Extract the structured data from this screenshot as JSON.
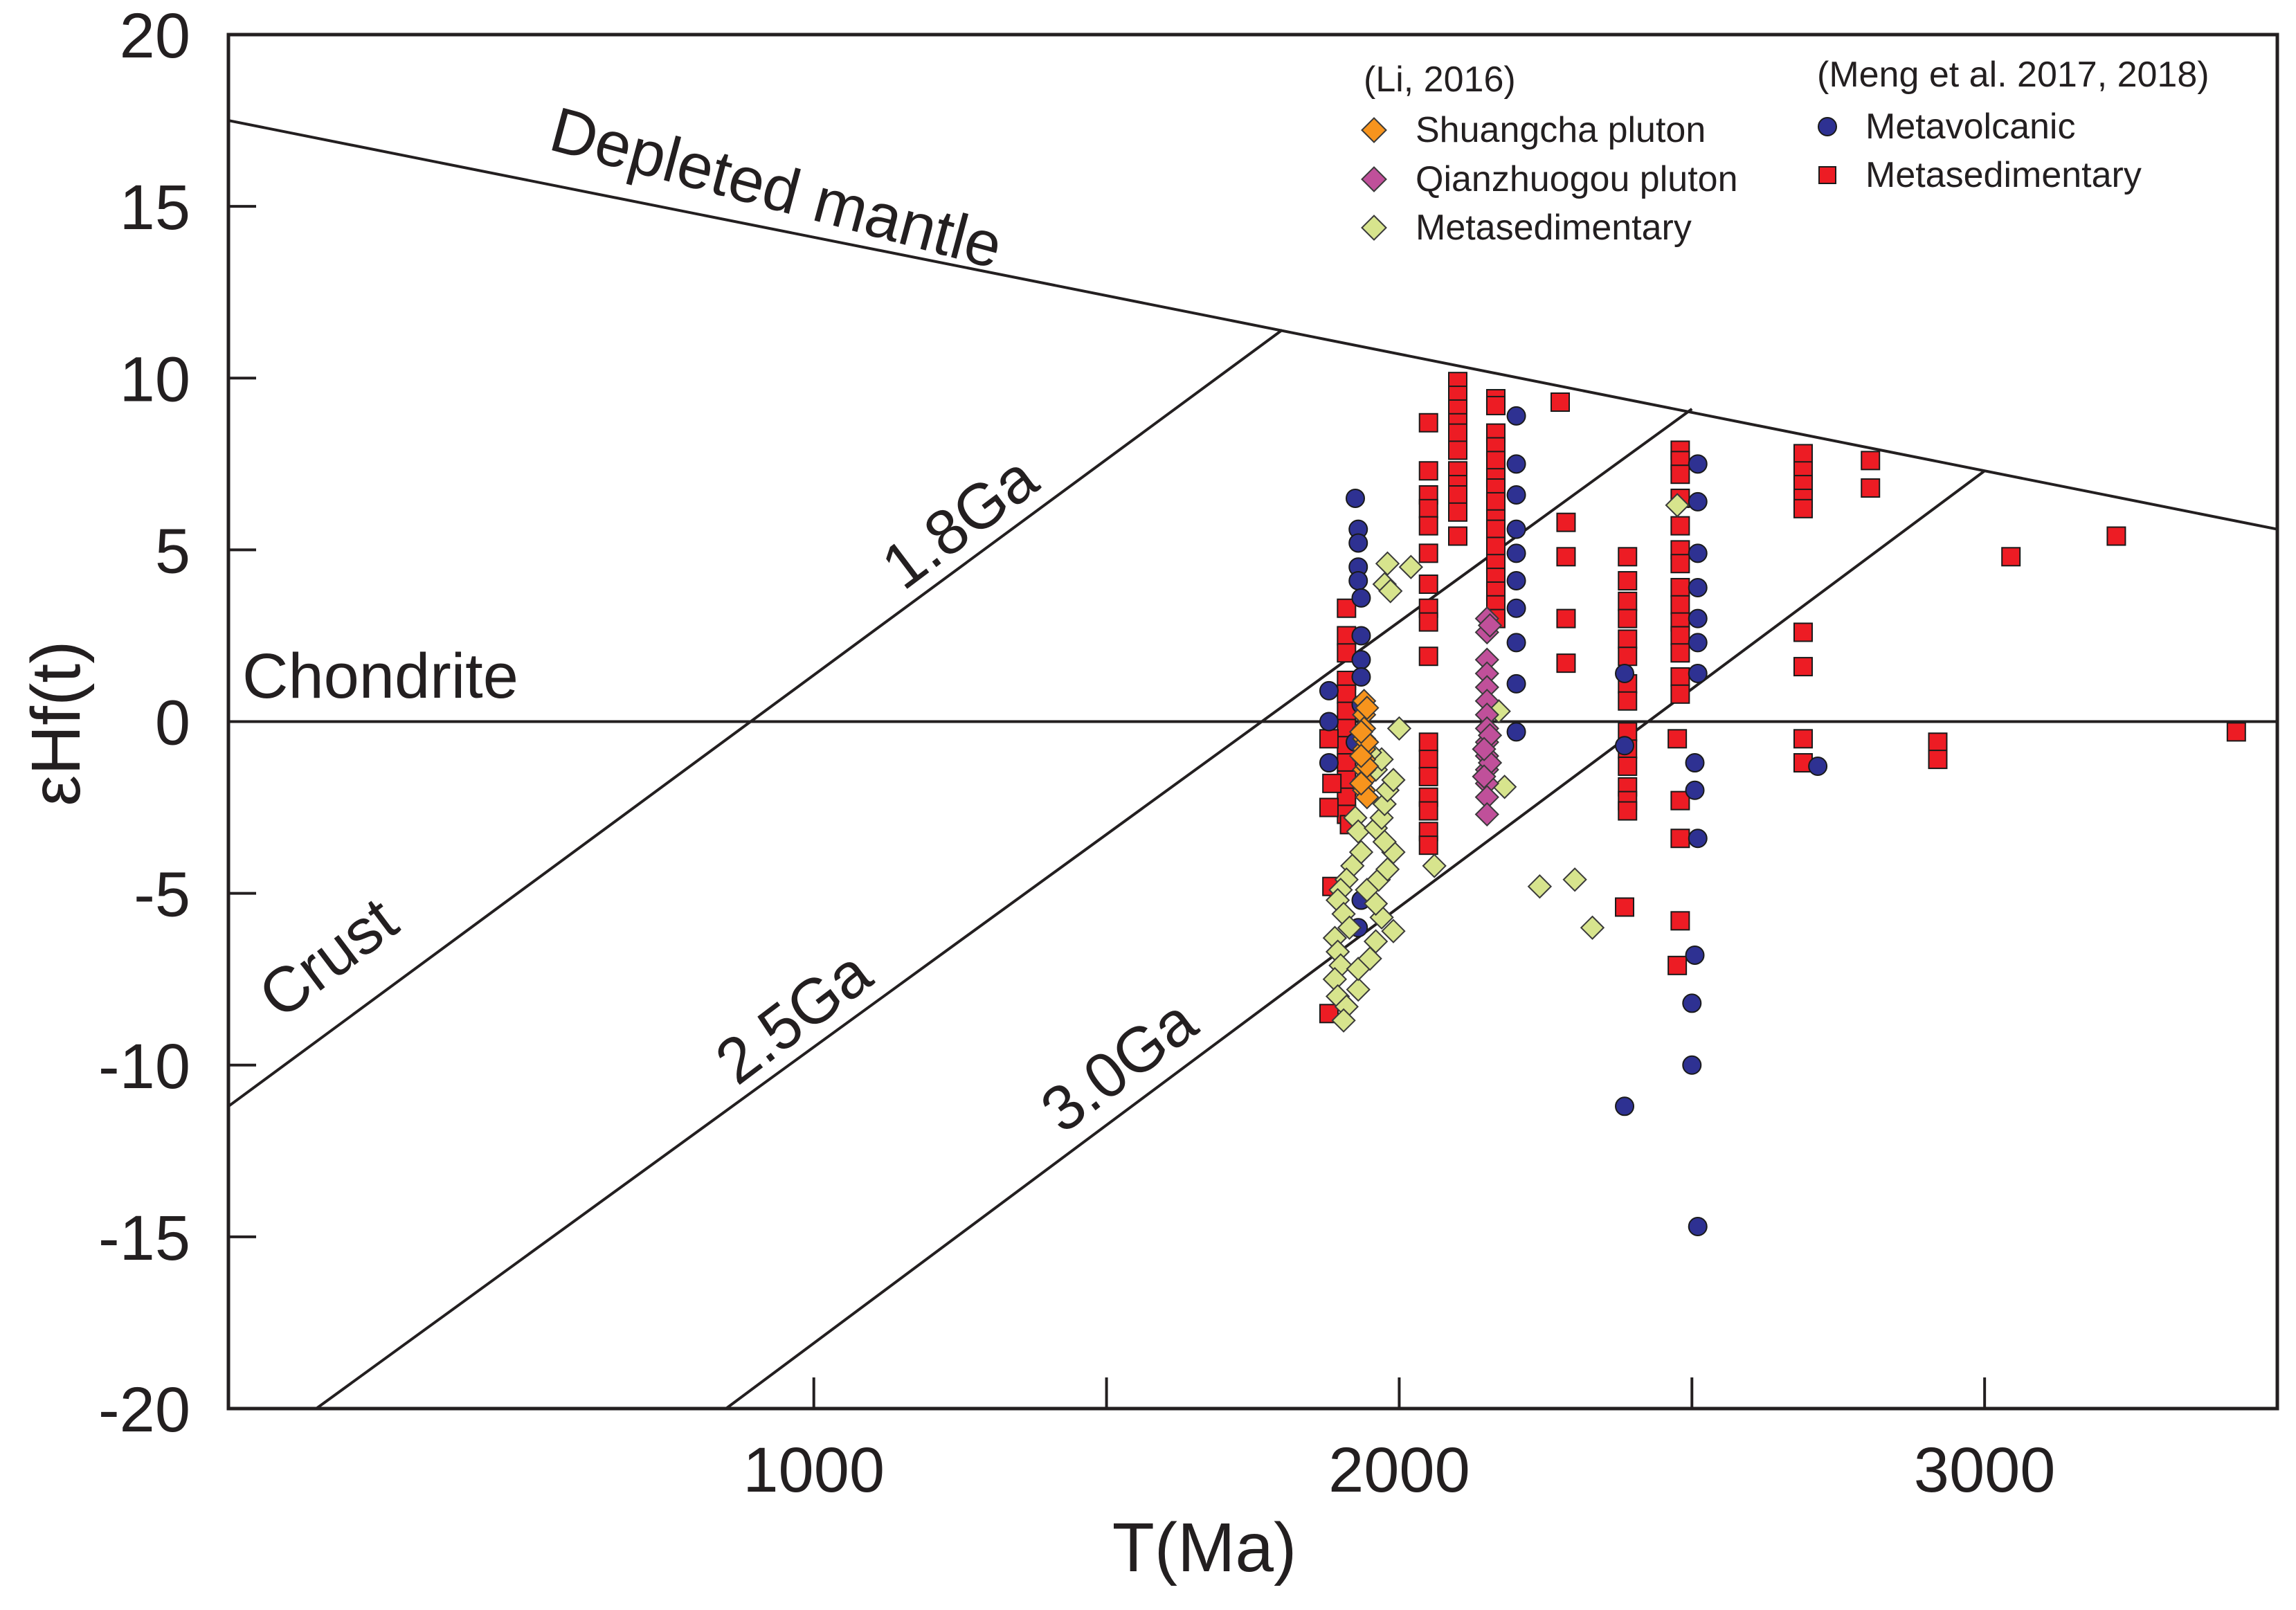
{
  "chart_data": {
    "type": "scatter",
    "title": "",
    "xlabel": "T(Ma)",
    "ylabel": "εHf(t)",
    "xlim": [
      0,
      3500
    ],
    "ylim": [
      -20,
      20
    ],
    "x_ticks": [
      1000,
      2000,
      3000
    ],
    "x_minor_ticks": [
      1500,
      2500
    ],
    "y_ticks": [
      20,
      15,
      10,
      5,
      0,
      -5,
      -10,
      -15,
      -20
    ],
    "x_tick_labels": [
      "1000",
      "2000",
      "3000"
    ],
    "y_tick_labels": [
      "20",
      "15",
      "10",
      "5",
      "0",
      "-5",
      "-10",
      "-15",
      "-20"
    ],
    "grid": false,
    "legend_position": "top-right",
    "reference_lines": [
      {
        "name": "Depleted mantle",
        "label": "Depleted mantle",
        "points": [
          [
            0,
            17.5
          ],
          [
            3500,
            5.6
          ]
        ]
      },
      {
        "name": "Chondrite",
        "label": "Chondrite",
        "points": [
          [
            0,
            0
          ],
          [
            3500,
            0
          ]
        ]
      },
      {
        "name": "Crust 1.8Ga",
        "label": "1.8Ga",
        "points": [
          [
            0,
            -11.2
          ],
          [
            1800,
            11.4
          ]
        ]
      },
      {
        "name": "Crust 2.5Ga",
        "label": "2.5Ga",
        "points": [
          [
            150,
            -20
          ],
          [
            2500,
            9.1
          ]
        ]
      },
      {
        "name": "Crust 3.0Ga",
        "label": "3.0Ga",
        "points": [
          [
            850,
            -20
          ],
          [
            3000,
            7.3
          ]
        ]
      }
    ],
    "crust_label": "Crust",
    "legend_groups": [
      {
        "heading": "(Li, 2016)",
        "entries": [
          "Shuangcha pluton",
          "Qianzhuogou pluton",
          "Metasedimentary"
        ]
      },
      {
        "heading": "(Meng et al. 2017, 2018)",
        "entries": [
          "Metavolcanic",
          "Metasedimentary"
        ]
      }
    ],
    "series": [
      {
        "name": "Shuangcha pluton",
        "marker": "diamond",
        "color": "#f7941d",
        "points": [
          [
            1940,
            0.6
          ],
          [
            1940,
            0.2
          ],
          [
            1940,
            -0.2
          ],
          [
            1940,
            -0.5
          ],
          [
            1940,
            -0.8
          ],
          [
            1940,
            -1.1
          ],
          [
            1940,
            -1.4
          ],
          [
            1940,
            -1.7
          ],
          [
            1940,
            -2.0
          ],
          [
            1945,
            0.4
          ],
          [
            1945,
            -0.6
          ],
          [
            1945,
            -1.3
          ],
          [
            1945,
            -2.2
          ],
          [
            1935,
            -0.3
          ],
          [
            1935,
            -1.0
          ],
          [
            1935,
            -1.8
          ]
        ]
      },
      {
        "name": "Qianzhuogou pluton",
        "marker": "diamond",
        "color": "#c0509a",
        "points": [
          [
            2150,
            3.0
          ],
          [
            2150,
            2.6
          ],
          [
            2150,
            1.8
          ],
          [
            2150,
            1.4
          ],
          [
            2150,
            1.0
          ],
          [
            2150,
            0.6
          ],
          [
            2150,
            0.2
          ],
          [
            2150,
            -0.2
          ],
          [
            2150,
            -0.6
          ],
          [
            2150,
            -1.0
          ],
          [
            2150,
            -1.4
          ],
          [
            2150,
            -1.8
          ],
          [
            2150,
            -2.2
          ],
          [
            2150,
            -2.7
          ],
          [
            2155,
            2.8
          ],
          [
            2155,
            -0.4
          ],
          [
            2155,
            -1.2
          ],
          [
            2145,
            -0.8
          ],
          [
            2145,
            -1.6
          ]
        ]
      },
      {
        "name": "Metasedimentary (Li, 2016)",
        "marker": "diamond",
        "color": "#d7e48d",
        "points": [
          [
            1980,
            4.6
          ],
          [
            2020,
            4.5
          ],
          [
            1975,
            4.0
          ],
          [
            1985,
            3.8
          ],
          [
            1925,
            -2.8
          ],
          [
            1930,
            -3.2
          ],
          [
            1935,
            -3.8
          ],
          [
            1920,
            -4.2
          ],
          [
            1910,
            -4.6
          ],
          [
            1900,
            -4.9
          ],
          [
            1895,
            -5.2
          ],
          [
            1905,
            -5.6
          ],
          [
            1915,
            -6.0
          ],
          [
            1890,
            -6.3
          ],
          [
            1895,
            -6.7
          ],
          [
            1900,
            -7.1
          ],
          [
            1890,
            -7.5
          ],
          [
            1895,
            -8.0
          ],
          [
            1910,
            -8.3
          ],
          [
            1930,
            -7.8
          ],
          [
            1930,
            -7.2
          ],
          [
            1950,
            -6.9
          ],
          [
            1960,
            -6.4
          ],
          [
            1990,
            -6.1
          ],
          [
            1970,
            -5.7
          ],
          [
            1960,
            -5.3
          ],
          [
            1945,
            -4.9
          ],
          [
            1965,
            -4.6
          ],
          [
            1980,
            -4.3
          ],
          [
            1990,
            -3.8
          ],
          [
            1975,
            -3.5
          ],
          [
            1960,
            -3.1
          ],
          [
            1970,
            -2.8
          ],
          [
            1975,
            -2.4
          ],
          [
            1980,
            -2.0
          ],
          [
            1990,
            -1.7
          ],
          [
            1960,
            -1.4
          ],
          [
            1970,
            -1.1
          ],
          [
            1950,
            -0.9
          ],
          [
            2000,
            -0.2
          ],
          [
            2060,
            -4.2
          ],
          [
            2240,
            -4.8
          ],
          [
            2300,
            -4.6
          ],
          [
            2330,
            -6.0
          ],
          [
            2475,
            6.3
          ],
          [
            2170,
            0.3
          ],
          [
            2180,
            -1.9
          ],
          [
            1905,
            -8.7
          ]
        ]
      },
      {
        "name": "Metavolcanic",
        "marker": "circle",
        "color": "#2e3192",
        "points": [
          [
            1925,
            6.5
          ],
          [
            1930,
            5.6
          ],
          [
            1930,
            5.2
          ],
          [
            1930,
            4.5
          ],
          [
            1930,
            4.1
          ],
          [
            1935,
            3.6
          ],
          [
            1935,
            2.5
          ],
          [
            1935,
            1.8
          ],
          [
            1935,
            1.3
          ],
          [
            1935,
            0.5
          ],
          [
            1925,
            -0.6
          ],
          [
            1935,
            -5.2
          ],
          [
            1930,
            -6.0
          ],
          [
            1880,
            0.9
          ],
          [
            1880,
            0.0
          ],
          [
            1880,
            -1.2
          ],
          [
            2200,
            8.9
          ],
          [
            2200,
            7.5
          ],
          [
            2200,
            6.6
          ],
          [
            2200,
            5.6
          ],
          [
            2200,
            4.9
          ],
          [
            2200,
            4.1
          ],
          [
            2200,
            3.3
          ],
          [
            2200,
            2.3
          ],
          [
            2200,
            1.1
          ],
          [
            2200,
            -0.3
          ],
          [
            2385,
            1.4
          ],
          [
            2385,
            -0.7
          ],
          [
            2385,
            -11.2
          ],
          [
            2510,
            7.5
          ],
          [
            2510,
            6.4
          ],
          [
            2510,
            4.9
          ],
          [
            2510,
            3.9
          ],
          [
            2510,
            3.0
          ],
          [
            2510,
            2.3
          ],
          [
            2510,
            1.4
          ],
          [
            2505,
            -1.2
          ],
          [
            2505,
            -2.0
          ],
          [
            2510,
            -3.4
          ],
          [
            2505,
            -6.8
          ],
          [
            2500,
            -8.2
          ],
          [
            2500,
            -10.0
          ],
          [
            2510,
            -14.7
          ],
          [
            2715,
            -1.3
          ]
        ]
      },
      {
        "name": "Metasedimentary (Meng et al. 2017, 2018)",
        "marker": "square",
        "color": "#ed1c24",
        "points": [
          [
            1910,
            3.3
          ],
          [
            1910,
            2.5
          ],
          [
            1910,
            2.0
          ],
          [
            1910,
            1.2
          ],
          [
            1910,
            0.8
          ],
          [
            1910,
            0.3
          ],
          [
            1910,
            -0.2
          ],
          [
            1910,
            -0.7
          ],
          [
            1910,
            -1.2
          ],
          [
            1910,
            -1.7
          ],
          [
            1910,
            -2.2
          ],
          [
            1910,
            -2.7
          ],
          [
            1915,
            -3.0
          ],
          [
            1880,
            -0.5
          ],
          [
            1885,
            -1.8
          ],
          [
            1880,
            -2.5
          ],
          [
            1885,
            -4.8
          ],
          [
            1880,
            -8.5
          ],
          [
            2050,
            8.7
          ],
          [
            2050,
            7.3
          ],
          [
            2050,
            6.6
          ],
          [
            2050,
            6.2
          ],
          [
            2050,
            5.7
          ],
          [
            2050,
            4.9
          ],
          [
            2050,
            4.0
          ],
          [
            2050,
            3.3
          ],
          [
            2050,
            2.9
          ],
          [
            2050,
            1.9
          ],
          [
            2050,
            -0.6
          ],
          [
            2050,
            -1.1
          ],
          [
            2050,
            -1.6
          ],
          [
            2050,
            -2.2
          ],
          [
            2050,
            -2.6
          ],
          [
            2050,
            -3.2
          ],
          [
            2050,
            -3.6
          ],
          [
            2100,
            9.9
          ],
          [
            2100,
            9.5
          ],
          [
            2100,
            9.1
          ],
          [
            2100,
            8.7
          ],
          [
            2100,
            8.4
          ],
          [
            2100,
            7.9
          ],
          [
            2100,
            7.3
          ],
          [
            2100,
            6.9
          ],
          [
            2100,
            6.6
          ],
          [
            2100,
            6.1
          ],
          [
            2100,
            5.4
          ],
          [
            2165,
            9.4
          ],
          [
            2165,
            9.2
          ],
          [
            2165,
            8.4
          ],
          [
            2165,
            8.0
          ],
          [
            2165,
            7.6
          ],
          [
            2165,
            7.1
          ],
          [
            2165,
            6.8
          ],
          [
            2165,
            6.4
          ],
          [
            2165,
            5.9
          ],
          [
            2165,
            5.6
          ],
          [
            2165,
            5.1
          ],
          [
            2165,
            4.6
          ],
          [
            2165,
            4.2
          ],
          [
            2165,
            3.8
          ],
          [
            2165,
            3.4
          ],
          [
            2165,
            3.0
          ],
          [
            2275,
            9.3
          ],
          [
            2285,
            5.8
          ],
          [
            2285,
            4.8
          ],
          [
            2285,
            3.0
          ],
          [
            2285,
            1.7
          ],
          [
            2390,
            4.8
          ],
          [
            2390,
            4.1
          ],
          [
            2390,
            3.5
          ],
          [
            2390,
            3.0
          ],
          [
            2390,
            2.4
          ],
          [
            2390,
            1.9
          ],
          [
            2390,
            1.1
          ],
          [
            2390,
            0.6
          ],
          [
            2390,
            -0.3
          ],
          [
            2390,
            -0.8
          ],
          [
            2390,
            -1.3
          ],
          [
            2390,
            -1.9
          ],
          [
            2390,
            -2.3
          ],
          [
            2390,
            -2.6
          ],
          [
            2385,
            -5.4
          ],
          [
            2480,
            7.9
          ],
          [
            2480,
            7.6
          ],
          [
            2480,
            7.2
          ],
          [
            2480,
            6.5
          ],
          [
            2480,
            5.7
          ],
          [
            2480,
            5.0
          ],
          [
            2480,
            4.6
          ],
          [
            2480,
            3.9
          ],
          [
            2480,
            3.4
          ],
          [
            2480,
            2.9
          ],
          [
            2480,
            2.5
          ],
          [
            2480,
            2.0
          ],
          [
            2480,
            1.3
          ],
          [
            2480,
            0.8
          ],
          [
            2475,
            -0.5
          ],
          [
            2480,
            -2.3
          ],
          [
            2480,
            -3.4
          ],
          [
            2480,
            -5.8
          ],
          [
            2475,
            -7.1
          ],
          [
            2690,
            7.8
          ],
          [
            2690,
            7.3
          ],
          [
            2690,
            6.9
          ],
          [
            2690,
            6.5
          ],
          [
            2690,
            6.2
          ],
          [
            2690,
            2.6
          ],
          [
            2690,
            1.6
          ],
          [
            2690,
            -0.5
          ],
          [
            2690,
            -1.2
          ],
          [
            2805,
            7.6
          ],
          [
            2805,
            6.8
          ],
          [
            2920,
            -0.6
          ],
          [
            2920,
            -1.1
          ],
          [
            3045,
            4.8
          ],
          [
            3225,
            5.4
          ],
          [
            3430,
            -0.3
          ]
        ]
      }
    ]
  }
}
